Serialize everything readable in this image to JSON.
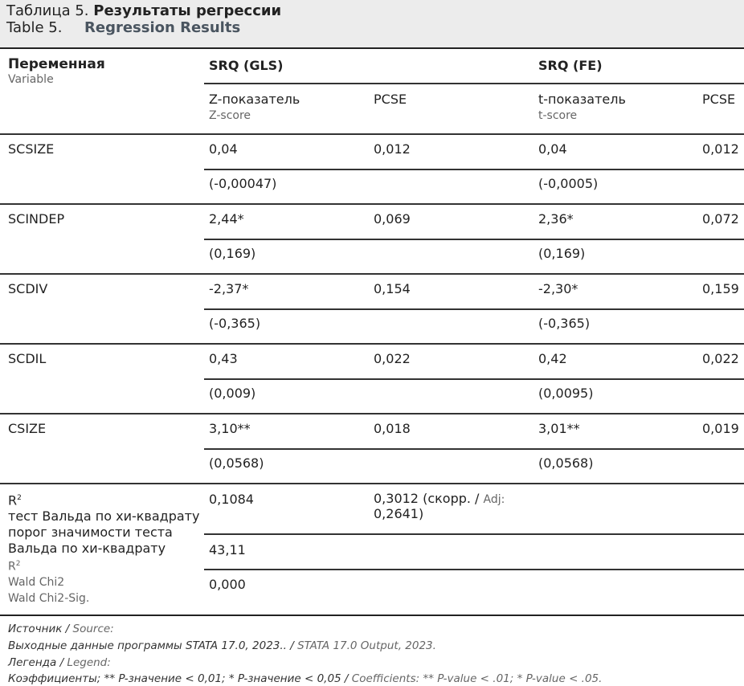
{
  "caption": {
    "ru_label": "Таблица 5.",
    "ru_title": "Результаты регрессии",
    "en_label": "Table 5.",
    "en_title": "Regression Results"
  },
  "header": {
    "variable_ru": "Переменная",
    "variable_en": "Variable",
    "gls": "SRQ (GLS)",
    "fe": "SRQ (FE)",
    "z_ru": "Z-показатель",
    "z_en": "Z-score",
    "pcse1": "PCSE",
    "t_ru": "t-показатель",
    "t_en": "t-score",
    "pcse2": "PCSE"
  },
  "rows": [
    {
      "name": "SCSIZE",
      "gls": "0,04",
      "gls_se": "(-0,00047)",
      "pcse1": "0,012",
      "fe": "0,04",
      "fe_se": "(-0,0005)",
      "pcse2": "0,012"
    },
    {
      "name": "SCINDEP",
      "gls": "2,44*",
      "gls_se": "(0,169)",
      "pcse1": "0,069",
      "fe": "2,36*",
      "fe_se": "(0,169)",
      "pcse2": "0,072"
    },
    {
      "name": "SCDIV",
      "gls": "-2,37*",
      "gls_se": "(-0,365)",
      "pcse1": "0,154",
      "fe": "-2,30*",
      "fe_se": "(-0,365)",
      "pcse2": "0,159"
    },
    {
      "name": "SCDIL",
      "gls": "0,43",
      "gls_se": "(0,009)",
      "pcse1": "0,022",
      "fe": "0,42",
      "fe_se": "(0,0095)",
      "pcse2": "0,022"
    },
    {
      "name": "CSIZE",
      "gls": "3,10**",
      "gls_se": "(0,0568)",
      "pcse1": "0,018",
      "fe": "3,01**",
      "fe_se": "(0,0568)",
      "pcse2": "0,019"
    }
  ],
  "stats": {
    "r2_label": "R",
    "wald_ru": "тест Вальда по хи-квадрату",
    "sig_ru_1": "порог значимости теста",
    "sig_ru_2": "Вальда по хи-квадрату",
    "r2_en": "R",
    "wald_en": "Wald Chi2",
    "sig_en": "Wald Chi2-Sig.",
    "sup": "2",
    "r2_value": "0,1084",
    "r2_fe_1": "0,3012 (скорр. / ",
    "r2_fe_adj": "Adj:",
    "r2_fe_2": "0,2641)",
    "wald_value": "43,11",
    "sig_value": "0,000"
  },
  "footer": {
    "source_ru": "Источник / ",
    "source_en": "Source:",
    "source_text_ru": "Выходные данные программы STATA 17.0, 2023.. / ",
    "source_text_en": "STATA 17.0 Output, 2023.",
    "legend_ru": "Легенда / ",
    "legend_en": "Legend:",
    "legend_text_ru": "Коэффициенты; ** P-значение < 0,01; * P-значение < 0,05 / ",
    "legend_text_en": "Coefficients: ** P-value < .01; * P-value < .05."
  }
}
